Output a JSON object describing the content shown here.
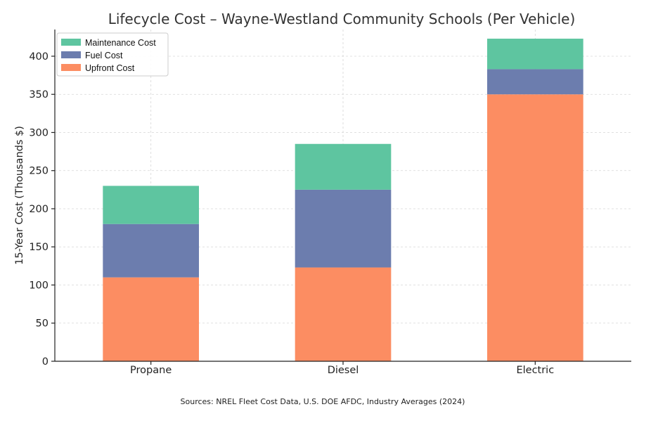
{
  "chart_data": {
    "type": "bar",
    "stacked": true,
    "title": "Lifecycle Cost – Wayne-Westland Community Schools (Per Vehicle)",
    "xlabel": "",
    "ylabel": "15-Year Cost (Thousands $)",
    "categories": [
      "Propane",
      "Diesel",
      "Electric"
    ],
    "series": [
      {
        "name": "Upfront Cost",
        "values": [
          110,
          123,
          350
        ],
        "color": "#FC8D62"
      },
      {
        "name": "Fuel Cost",
        "values": [
          70,
          102,
          33
        ],
        "color": "#6C7DAE"
      },
      {
        "name": "Maintenance Cost",
        "values": [
          50,
          60,
          40
        ],
        "color": "#5EC5A0"
      }
    ],
    "legend_order": [
      "Maintenance Cost",
      "Fuel Cost",
      "Upfront Cost"
    ],
    "legend_position": "top-left",
    "ylim": [
      0,
      435
    ],
    "yticks": [
      0,
      50,
      100,
      150,
      200,
      250,
      300,
      350,
      400
    ],
    "grid": true,
    "source": "Sources: NREL Fleet Cost Data, U.S. DOE AFDC, Industry Averages (2024)"
  }
}
